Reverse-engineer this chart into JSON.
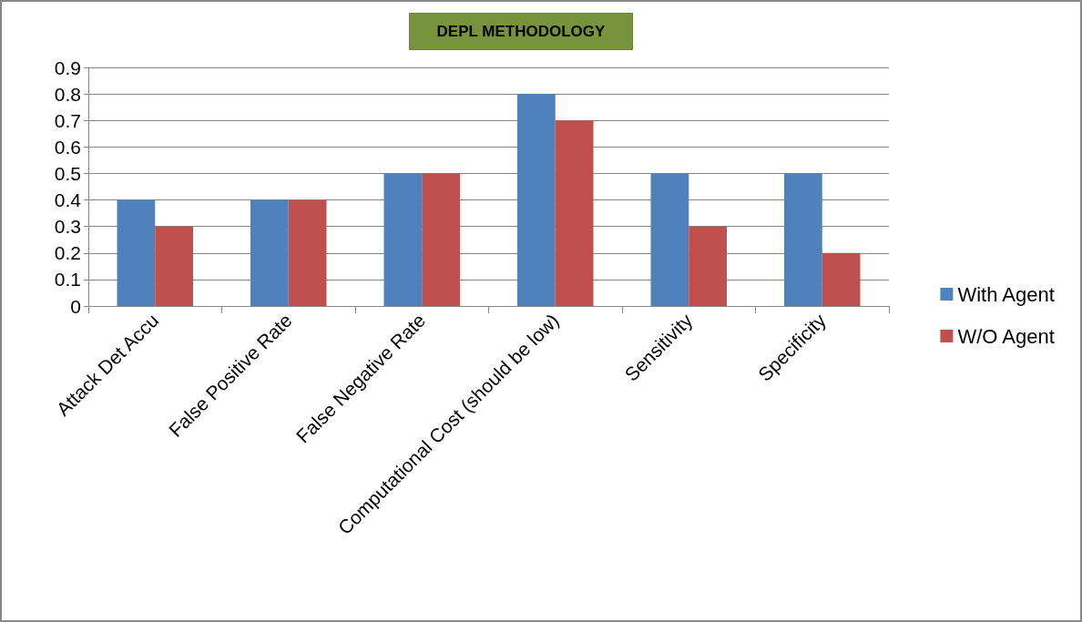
{
  "chart_data": {
    "type": "bar",
    "title": "DEPL METHODOLOGY",
    "categories": [
      "Attack Det Accu",
      "False Positive Rate",
      "False Negative Rate",
      "Computational Cost (should be low)",
      "Sensitivity",
      "Specificity"
    ],
    "series": [
      {
        "name": "With Agent",
        "color": "#4f81bd",
        "values": [
          0.4,
          0.4,
          0.5,
          0.8,
          0.5,
          0.5
        ]
      },
      {
        "name": "W/O Agent",
        "color": "#c0504d",
        "values": [
          0.3,
          0.4,
          0.5,
          0.7,
          0.3,
          0.2
        ]
      }
    ],
    "ylim": [
      0,
      0.9
    ],
    "yticks": [
      0,
      0.1,
      0.2,
      0.3,
      0.4,
      0.5,
      0.6,
      0.7,
      0.8,
      0.9
    ],
    "grid": "y",
    "legend": "right"
  }
}
